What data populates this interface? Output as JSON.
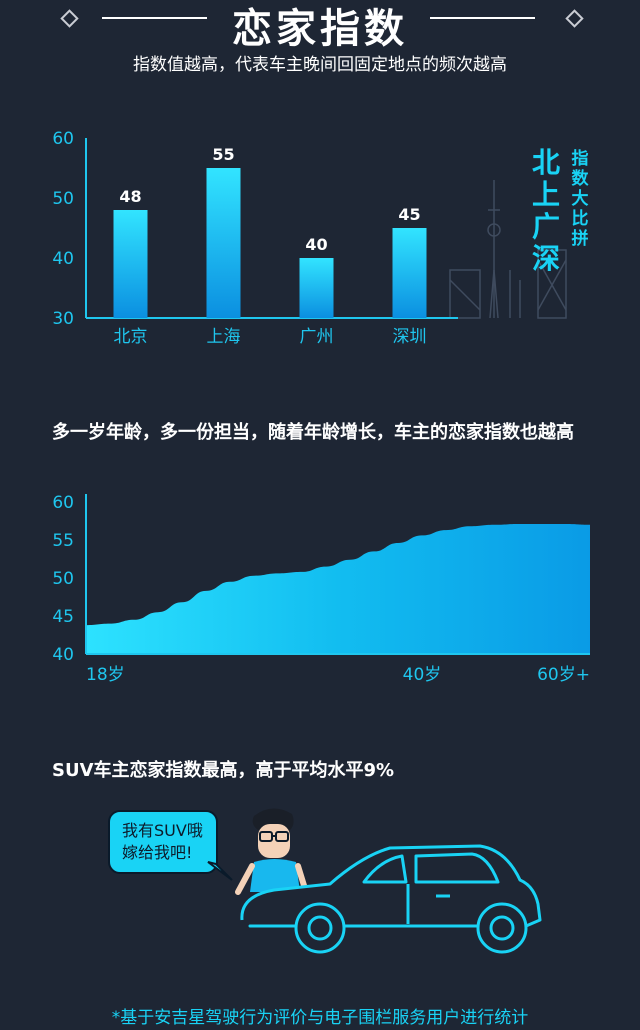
{
  "header": {
    "title": "恋家指数",
    "subtitle": "指数值越高，代表车主晚间回固定地点的频次越高"
  },
  "city_panel": {
    "title_big": "北上广深",
    "title_small": "指数大比拼"
  },
  "age_section": {
    "heading": "多一岁年龄，多一份担当，随着年龄增长，车主的恋家指数也越高"
  },
  "suv_section": {
    "heading": "SUV车主恋家指数最高，高于平均水平9%",
    "bubble_line1": "我有SUV哦",
    "bubble_line2": "嫁给我吧!"
  },
  "footnote": "*基于安吉星驾驶行为评价与电子围栏服务用户进行统计",
  "colors": {
    "background": "#1e2634",
    "accent": "#19d3f5",
    "bar_top": "#32e4ff",
    "bar_bottom": "#0b8fe0",
    "axis": "#1fc6ee"
  },
  "chart_data": [
    {
      "type": "bar",
      "categories": [
        "北京",
        "上海",
        "广州",
        "深圳"
      ],
      "values": [
        48,
        55,
        40,
        45
      ],
      "ylim": [
        30,
        60
      ],
      "yticks": [
        30,
        40,
        50,
        60
      ],
      "title": "",
      "xlabel": "",
      "ylabel": "",
      "data_labels": true,
      "grid": false
    },
    {
      "type": "area",
      "x": [
        18,
        20,
        22,
        24,
        26,
        28,
        30,
        32,
        34,
        36,
        38,
        40,
        42,
        44,
        46,
        48,
        50,
        52,
        54,
        56,
        58,
        60
      ],
      "values": [
        43.8,
        44.0,
        44.5,
        45.5,
        46.8,
        48.3,
        49.5,
        50.3,
        50.6,
        50.8,
        51.5,
        52.4,
        53.5,
        54.6,
        55.6,
        56.3,
        56.8,
        57.0,
        57.1,
        57.1,
        57.1,
        57.0
      ],
      "xticks": [
        "18岁",
        "40岁",
        "60岁+"
      ],
      "ylim": [
        40,
        60
      ],
      "yticks": [
        40,
        45,
        50,
        55,
        60
      ],
      "title": "",
      "xlabel": "",
      "ylabel": "",
      "grid": false
    }
  ]
}
